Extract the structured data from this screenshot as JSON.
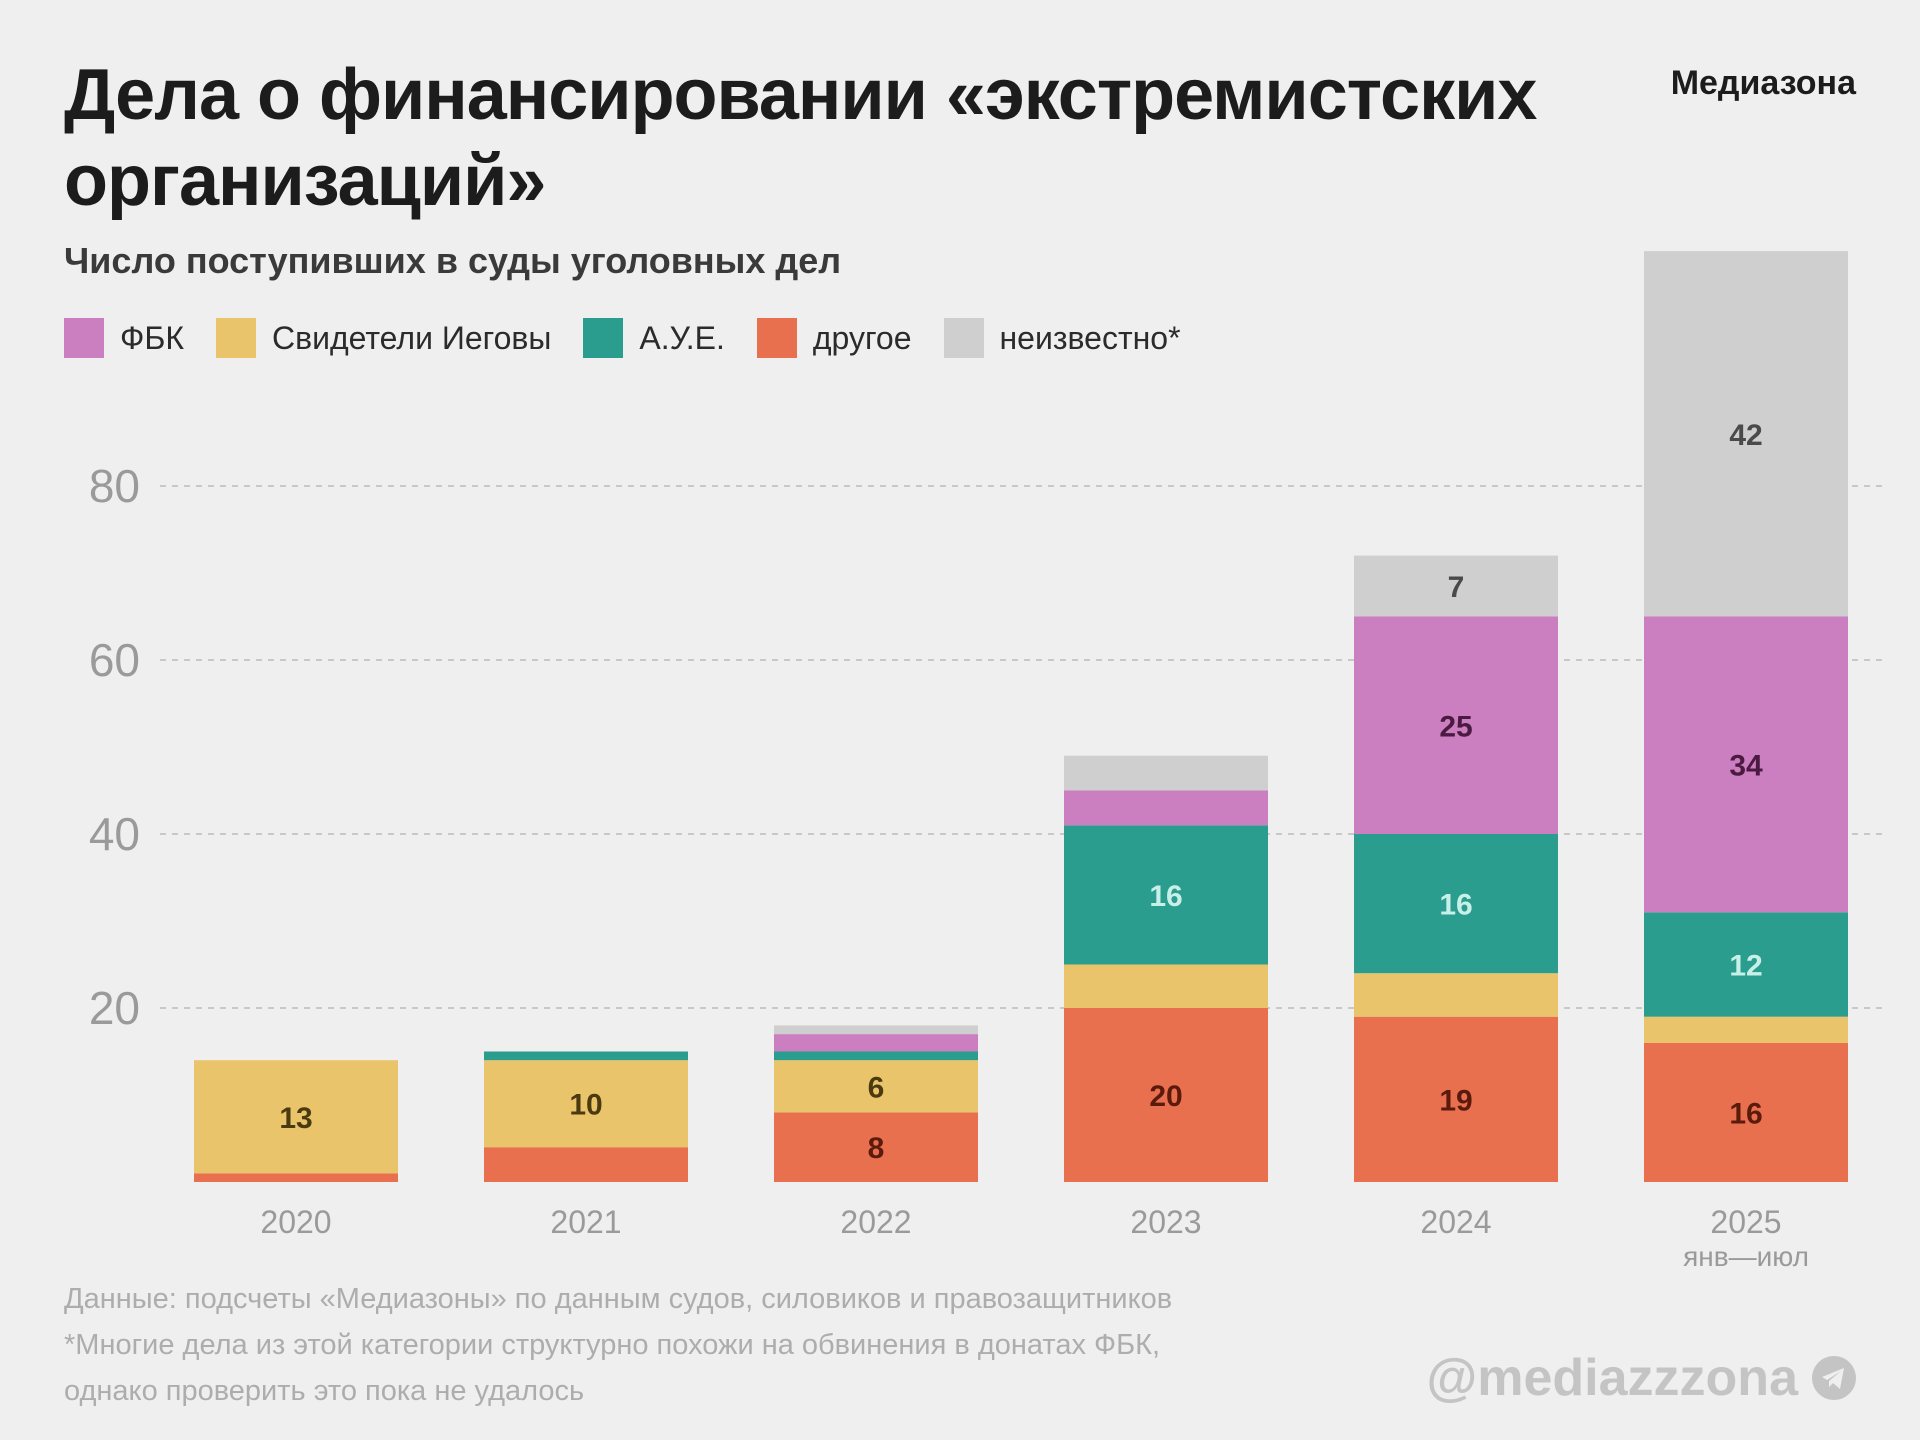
{
  "header": {
    "title": "Дела о финансировании «экстремистских организаций»",
    "brand": "Медиазона",
    "subtitle": "Число поступивших в суды уголовных дел"
  },
  "colors": {
    "background": "#efefef",
    "grid": "#c8c8c8"
  },
  "chart_data": {
    "type": "bar",
    "stacked": true,
    "title": "Дела о финансировании «экстремистских организаций»",
    "subtitle": "Число поступивших в суды уголовных дел",
    "categories": [
      "2020",
      "2021",
      "2022",
      "2023",
      "2024",
      "2025"
    ],
    "category_sublabels": [
      "",
      "",
      "",
      "",
      "",
      "янв—июл"
    ],
    "ylim": [
      0,
      107
    ],
    "yticks": [
      20,
      40,
      60,
      80
    ],
    "grid": true,
    "legend_position": "top-left",
    "series": [
      {
        "name": "другое",
        "color": "#e8704f",
        "label_color": "#5a1a0c",
        "values": [
          1,
          4,
          8,
          20,
          19,
          16
        ],
        "labels": [
          "",
          "",
          "8",
          "20",
          "19",
          "16"
        ]
      },
      {
        "name": "Свидетели Иеговы",
        "color": "#e9c46a",
        "label_color": "#4a3a10",
        "values": [
          13,
          10,
          6,
          5,
          5,
          3
        ],
        "labels": [
          "13",
          "10",
          "6",
          "",
          "",
          ""
        ]
      },
      {
        "name": "А.У.Е.",
        "color": "#2a9d8f",
        "label_color": "#c8f0e8",
        "values": [
          0,
          1,
          1,
          16,
          16,
          12
        ],
        "labels": [
          "",
          "",
          "",
          "16",
          "16",
          "12"
        ]
      },
      {
        "name": "ФБК",
        "color": "#cc7fc0",
        "label_color": "#4a1a40",
        "values": [
          0,
          0,
          2,
          4,
          25,
          34
        ],
        "labels": [
          "",
          "",
          "",
          "",
          "25",
          "34"
        ]
      },
      {
        "name": "неизвестно*",
        "color": "#cfcfcf",
        "label_color": "#4a4a4a",
        "values": [
          0,
          0,
          1,
          4,
          7,
          42
        ],
        "labels": [
          "",
          "",
          "",
          "",
          "7",
          "42"
        ]
      }
    ]
  },
  "legend": [
    {
      "label": "ФБК",
      "color": "#cc7fc0"
    },
    {
      "label": "Свидетели Иеговы",
      "color": "#e9c46a"
    },
    {
      "label": "А.У.Е.",
      "color": "#2a9d8f"
    },
    {
      "label": "другое",
      "color": "#e8704f"
    },
    {
      "label": "неизвестно*",
      "color": "#cfcfcf"
    }
  ],
  "footer": {
    "source": "Данные: подсчеты «Медиазоны» по данным судов, силовиков и правозащитников",
    "note_line1": "*Многие дела из этой категории структурно похожи на обвинения в донатах ФБК,",
    "note_line2": "однако проверить это пока не удалось",
    "handle": "@mediazzzona",
    "handle_icon": "telegram-icon"
  }
}
